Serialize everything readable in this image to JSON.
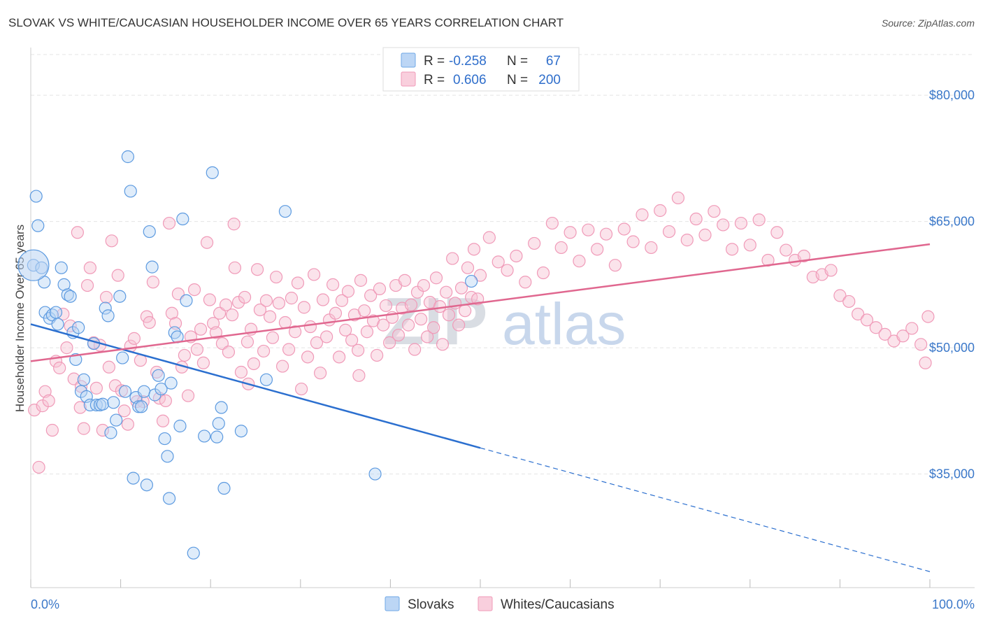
{
  "header": {
    "title": "SLOVAK VS WHITE/CAUCASIAN HOUSEHOLDER INCOME OVER 65 YEARS CORRELATION CHART",
    "source": "Source: ZipAtlas.com"
  },
  "watermark": {
    "zip": "ZIP",
    "atlas": "atlas"
  },
  "legend": {
    "rows": [
      {
        "r_label": "R =",
        "r_value": "-0.258",
        "n_label": "N =",
        "n_value": "67",
        "color": "#6fa8e6"
      },
      {
        "r_label": "R =",
        "r_value": "0.606",
        "n_label": "N =",
        "n_value": "200",
        "color": "#f09ab8"
      }
    ]
  },
  "bottom_legend": {
    "items": [
      "Slovaks",
      "Whites/Caucasians"
    ]
  },
  "chart_data": {
    "type": "scatter",
    "title": "SLOVAK VS WHITE/CAUCASIAN HOUSEHOLDER INCOME OVER 65 YEARS CORRELATION CHART",
    "xlabel": "",
    "ylabel": "Householder Income Over 65 years",
    "xlim": [
      0,
      100
    ],
    "ylim": [
      21500,
      85500
    ],
    "x_tick_labels": [
      "0.0%",
      "100.0%"
    ],
    "y_ticks": [
      35000,
      50000,
      65000,
      80000
    ],
    "y_tick_labels": [
      "$35,000",
      "$50,000",
      "$65,000",
      "$80,000"
    ],
    "grid": true,
    "colors": {
      "slovaks": "#6fa8e6",
      "whites": "#f09ab8",
      "slovaks_line": "#2b6fcf",
      "whites_line": "#e0678f"
    },
    "series": [
      {
        "name": "Slovaks",
        "trend": {
          "x0": 0,
          "y0": 52800,
          "x1": 50,
          "y1": 38100,
          "x_dash_end": 100,
          "y_dash_end": 23400
        },
        "points": [
          [
            0.3,
            59800
          ],
          [
            0.6,
            68000
          ],
          [
            0.8,
            64500
          ],
          [
            1.2,
            59500
          ],
          [
            1.5,
            57800
          ],
          [
            1.6,
            54200
          ],
          [
            2.1,
            53500
          ],
          [
            2.4,
            53900
          ],
          [
            2.8,
            54200
          ],
          [
            3.0,
            52800
          ],
          [
            3.4,
            59500
          ],
          [
            3.7,
            57500
          ],
          [
            4.1,
            56300
          ],
          [
            4.4,
            56100
          ],
          [
            4.7,
            51800
          ],
          [
            5.0,
            48600
          ],
          [
            5.3,
            52400
          ],
          [
            5.6,
            44800
          ],
          [
            5.9,
            46200
          ],
          [
            6.2,
            44200
          ],
          [
            6.6,
            43200
          ],
          [
            7.0,
            50500
          ],
          [
            7.3,
            43200
          ],
          [
            7.7,
            43200
          ],
          [
            8.0,
            43300
          ],
          [
            8.3,
            54700
          ],
          [
            8.6,
            53800
          ],
          [
            8.9,
            39900
          ],
          [
            9.2,
            43500
          ],
          [
            9.5,
            41400
          ],
          [
            9.9,
            56100
          ],
          [
            10.2,
            48800
          ],
          [
            10.5,
            44800
          ],
          [
            10.8,
            72700
          ],
          [
            11.1,
            68600
          ],
          [
            11.4,
            34500
          ],
          [
            11.7,
            44100
          ],
          [
            12.0,
            43000
          ],
          [
            12.3,
            43000
          ],
          [
            12.6,
            44800
          ],
          [
            12.9,
            33700
          ],
          [
            13.2,
            63800
          ],
          [
            13.5,
            59600
          ],
          [
            13.8,
            44400
          ],
          [
            14.2,
            46700
          ],
          [
            14.5,
            45100
          ],
          [
            14.9,
            39200
          ],
          [
            15.2,
            37100
          ],
          [
            15.4,
            32100
          ],
          [
            15.6,
            45800
          ],
          [
            16.0,
            51800
          ],
          [
            16.3,
            51300
          ],
          [
            16.6,
            40700
          ],
          [
            16.9,
            65300
          ],
          [
            17.3,
            55600
          ],
          [
            18.1,
            25600
          ],
          [
            19.3,
            39500
          ],
          [
            20.2,
            70800
          ],
          [
            20.7,
            39400
          ],
          [
            20.9,
            41000
          ],
          [
            21.2,
            42900
          ],
          [
            21.5,
            33300
          ],
          [
            23.4,
            40100
          ],
          [
            26.2,
            46200
          ],
          [
            28.3,
            66200
          ],
          [
            38.3,
            35000
          ],
          [
            49.0,
            57900
          ]
        ]
      },
      {
        "name": "Whites/Caucasians",
        "trend": {
          "x0": 0,
          "y0": 48400,
          "x1": 100,
          "y1": 62300
        },
        "points": [
          [
            0.4,
            42600
          ],
          [
            0.9,
            35800
          ],
          [
            1.3,
            43100
          ],
          [
            1.6,
            44800
          ],
          [
            2.0,
            43700
          ],
          [
            2.4,
            40200
          ],
          [
            2.8,
            48400
          ],
          [
            3.2,
            47600
          ],
          [
            3.6,
            54000
          ],
          [
            4.0,
            50000
          ],
          [
            4.4,
            52600
          ],
          [
            4.8,
            46300
          ],
          [
            5.2,
            63700
          ],
          [
            5.6,
            45400
          ],
          [
            5.9,
            40400
          ],
          [
            6.3,
            57400
          ],
          [
            6.6,
            59500
          ],
          [
            7.0,
            50600
          ],
          [
            7.3,
            45200
          ],
          [
            7.7,
            50300
          ],
          [
            8.0,
            40200
          ],
          [
            8.4,
            56000
          ],
          [
            8.7,
            47700
          ],
          [
            9.0,
            62700
          ],
          [
            9.4,
            45500
          ],
          [
            9.7,
            58600
          ],
          [
            10.1,
            44900
          ],
          [
            10.4,
            42500
          ],
          [
            10.8,
            40900
          ],
          [
            11.1,
            50200
          ],
          [
            11.5,
            51100
          ],
          [
            11.8,
            43600
          ],
          [
            12.2,
            48500
          ],
          [
            12.5,
            43600
          ],
          [
            12.9,
            53700
          ],
          [
            13.2,
            53000
          ],
          [
            13.6,
            57800
          ],
          [
            14.0,
            47100
          ],
          [
            14.3,
            44000
          ],
          [
            14.7,
            41300
          ],
          [
            15.0,
            43700
          ],
          [
            15.4,
            64800
          ],
          [
            15.7,
            54100
          ],
          [
            16.1,
            52900
          ],
          [
            16.4,
            56400
          ],
          [
            16.8,
            47700
          ],
          [
            17.1,
            49100
          ],
          [
            17.5,
            44300
          ],
          [
            17.8,
            51300
          ],
          [
            18.2,
            56900
          ],
          [
            18.5,
            49800
          ],
          [
            18.9,
            52200
          ],
          [
            19.2,
            48200
          ],
          [
            19.6,
            62500
          ],
          [
            19.9,
            55700
          ],
          [
            20.3,
            52900
          ],
          [
            20.6,
            51800
          ],
          [
            21.0,
            54100
          ],
          [
            21.3,
            50500
          ],
          [
            21.7,
            55100
          ],
          [
            22.0,
            49500
          ],
          [
            22.4,
            53900
          ],
          [
            22.7,
            59500
          ],
          [
            23.1,
            55400
          ],
          [
            23.4,
            47100
          ],
          [
            23.8,
            56000
          ],
          [
            24.1,
            50700
          ],
          [
            24.5,
            52200
          ],
          [
            24.8,
            48100
          ],
          [
            25.2,
            59300
          ],
          [
            25.5,
            54500
          ],
          [
            25.9,
            49600
          ],
          [
            26.2,
            55600
          ],
          [
            26.6,
            53700
          ],
          [
            26.9,
            51200
          ],
          [
            27.3,
            58400
          ],
          [
            27.6,
            55300
          ],
          [
            28.0,
            47800
          ],
          [
            28.3,
            53000
          ],
          [
            28.7,
            49800
          ],
          [
            29.0,
            55900
          ],
          [
            29.4,
            51900
          ],
          [
            29.7,
            57700
          ],
          [
            30.1,
            45100
          ],
          [
            30.4,
            54800
          ],
          [
            30.8,
            48900
          ],
          [
            31.1,
            52500
          ],
          [
            31.5,
            58700
          ],
          [
            31.8,
            50600
          ],
          [
            32.2,
            47000
          ],
          [
            32.5,
            55700
          ],
          [
            32.9,
            51300
          ],
          [
            33.2,
            53300
          ],
          [
            33.6,
            57500
          ],
          [
            33.9,
            54100
          ],
          [
            34.3,
            48900
          ],
          [
            34.6,
            55600
          ],
          [
            35.0,
            52100
          ],
          [
            35.3,
            56700
          ],
          [
            35.7,
            50900
          ],
          [
            36.0,
            53900
          ],
          [
            36.4,
            49700
          ],
          [
            36.7,
            58000
          ],
          [
            37.1,
            54400
          ],
          [
            37.4,
            51900
          ],
          [
            37.8,
            56200
          ],
          [
            38.1,
            53200
          ],
          [
            38.5,
            49100
          ],
          [
            38.8,
            57000
          ],
          [
            39.2,
            52700
          ],
          [
            39.5,
            55000
          ],
          [
            39.9,
            50600
          ],
          [
            40.2,
            53600
          ],
          [
            40.6,
            57400
          ],
          [
            40.9,
            51500
          ],
          [
            41.3,
            54700
          ],
          [
            41.6,
            58000
          ],
          [
            42.0,
            52700
          ],
          [
            42.3,
            55100
          ],
          [
            42.7,
            49800
          ],
          [
            43.0,
            56600
          ],
          [
            43.4,
            53400
          ],
          [
            43.7,
            57400
          ],
          [
            44.1,
            51300
          ],
          [
            44.4,
            55400
          ],
          [
            44.8,
            52400
          ],
          [
            45.1,
            58300
          ],
          [
            45.5,
            54900
          ],
          [
            45.8,
            50400
          ],
          [
            46.2,
            56600
          ],
          [
            46.5,
            53900
          ],
          [
            46.9,
            60600
          ],
          [
            47.2,
            55300
          ],
          [
            47.6,
            52700
          ],
          [
            47.9,
            57100
          ],
          [
            48.3,
            54400
          ],
          [
            48.6,
            59500
          ],
          [
            49.0,
            56000
          ],
          [
            49.3,
            61700
          ],
          [
            49.7,
            55800
          ],
          [
            50.0,
            58600
          ],
          [
            51.0,
            63100
          ],
          [
            52.0,
            60200
          ],
          [
            53.0,
            59200
          ],
          [
            54.0,
            60900
          ],
          [
            55.0,
            57800
          ],
          [
            56.0,
            62400
          ],
          [
            57.0,
            58900
          ],
          [
            58.0,
            64800
          ],
          [
            59.0,
            61900
          ],
          [
            60.0,
            63700
          ],
          [
            61.0,
            60300
          ],
          [
            62.0,
            64000
          ],
          [
            63.0,
            61700
          ],
          [
            64.0,
            63500
          ],
          [
            65.0,
            59800
          ],
          [
            66.0,
            64100
          ],
          [
            67.0,
            62600
          ],
          [
            68.0,
            65800
          ],
          [
            69.0,
            61900
          ],
          [
            70.0,
            66300
          ],
          [
            71.0,
            63800
          ],
          [
            72.0,
            67800
          ],
          [
            73.0,
            62800
          ],
          [
            74.0,
            65300
          ],
          [
            75.0,
            63400
          ],
          [
            76.0,
            66200
          ],
          [
            77.0,
            64600
          ],
          [
            78.0,
            61700
          ],
          [
            79.0,
            64800
          ],
          [
            80.0,
            62200
          ],
          [
            81.0,
            65200
          ],
          [
            82.0,
            60400
          ],
          [
            83.0,
            63700
          ],
          [
            84.0,
            61600
          ],
          [
            85.0,
            60400
          ],
          [
            86.0,
            60900
          ],
          [
            87.0,
            58400
          ],
          [
            88.0,
            58700
          ],
          [
            89.0,
            59200
          ],
          [
            90.0,
            56200
          ],
          [
            91.0,
            55500
          ],
          [
            92.0,
            54000
          ],
          [
            93.0,
            53300
          ],
          [
            94.0,
            52400
          ],
          [
            95.0,
            51600
          ],
          [
            96.0,
            50800
          ],
          [
            97.0,
            51400
          ],
          [
            98.0,
            52300
          ],
          [
            99.0,
            50400
          ],
          [
            99.8,
            53700
          ],
          [
            99.5,
            48200
          ],
          [
            5.5,
            42900
          ],
          [
            22.6,
            64700
          ],
          [
            24.2,
            45700
          ],
          [
            36.5,
            46700
          ]
        ]
      }
    ]
  }
}
